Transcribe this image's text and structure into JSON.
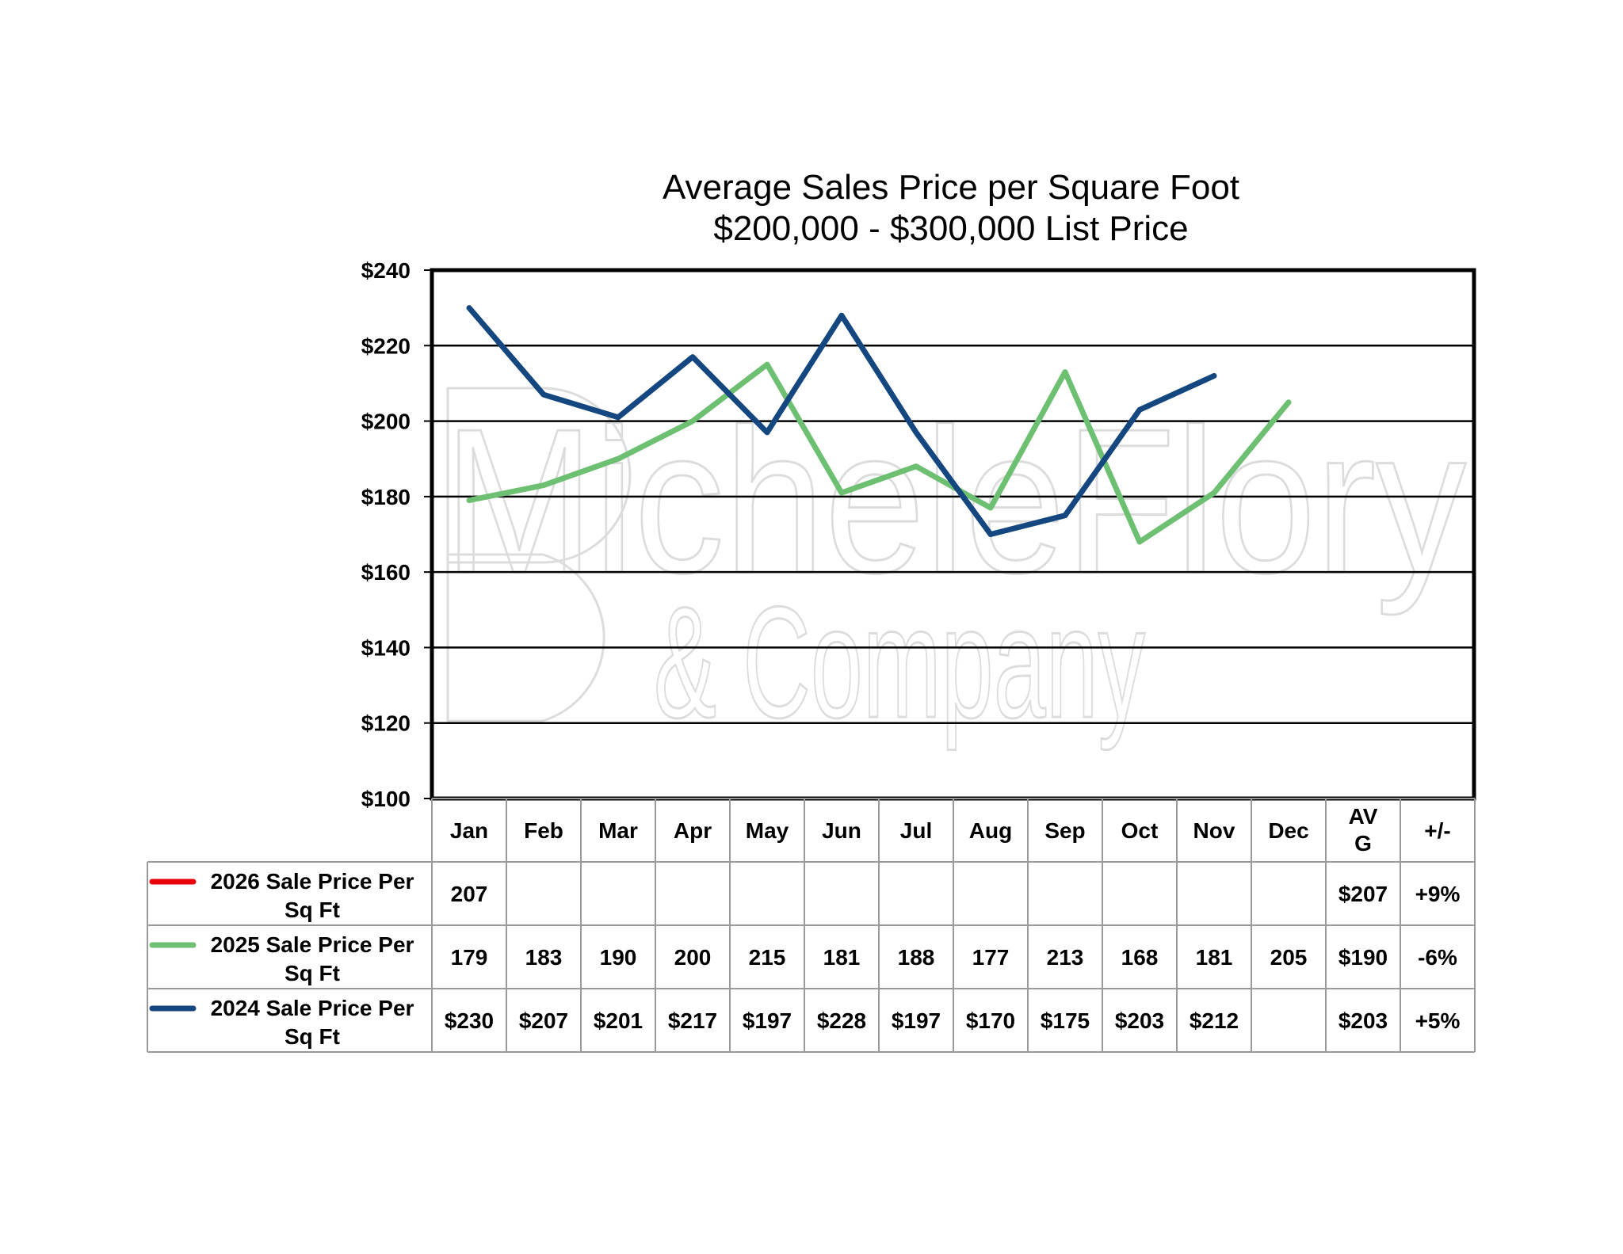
{
  "chart_data": {
    "type": "line",
    "title": "Average Sales Price per Square Foot",
    "subtitle": "$200,000 - $300,000 List Price",
    "categories": [
      "Jan",
      "Feb",
      "Mar",
      "Apr",
      "May",
      "Jun",
      "Jul",
      "Aug",
      "Sep",
      "Oct",
      "Nov",
      "Dec"
    ],
    "ylim": [
      100,
      240
    ],
    "yticks": [
      "$240",
      "$220",
      "$200",
      "$180",
      "$160",
      "$140",
      "$120",
      "$100"
    ],
    "ytick_values": [
      240,
      220,
      200,
      180,
      160,
      140,
      120,
      100
    ],
    "grid": true,
    "legend": "data-table",
    "table_headers": [
      "Jan",
      "Feb",
      "Mar",
      "Apr",
      "May",
      "Jun",
      "Jul",
      "Aug",
      "Sep",
      "Oct",
      "Nov",
      "Dec",
      "AV\nG",
      "+/-"
    ],
    "series": [
      {
        "name": "2026 Sale Price Per Sq Ft",
        "color": "#e8000b",
        "values": [
          207,
          null,
          null,
          null,
          null,
          null,
          null,
          null,
          null,
          null,
          null,
          null
        ],
        "cells": [
          "207",
          "",
          "",
          "",
          "",
          "",
          "",
          "",
          "",
          "",
          "",
          "",
          "$207",
          "+9%"
        ]
      },
      {
        "name": "2025 Sale Price Per Sq Ft",
        "color": "#6dbf72",
        "values": [
          179,
          183,
          190,
          200,
          215,
          181,
          188,
          177,
          213,
          168,
          181,
          205
        ],
        "cells": [
          "179",
          "183",
          "190",
          "200",
          "215",
          "181",
          "188",
          "177",
          "213",
          "168",
          "181",
          "205",
          "$190",
          "-6%"
        ]
      },
      {
        "name": "2024 Sale Price Per Sq Ft",
        "color": "#144680",
        "values": [
          230,
          207,
          201,
          217,
          197,
          228,
          197,
          170,
          175,
          203,
          212,
          null
        ],
        "cells": [
          "$230",
          "$207",
          "$201",
          "$217",
          "$197",
          "$228",
          "$197",
          "$170",
          "$175",
          "$203",
          "$212",
          "",
          "$203",
          "+5%"
        ]
      }
    ]
  },
  "watermark": {
    "line1": "MicheleFlory",
    "line2": "& Company"
  }
}
